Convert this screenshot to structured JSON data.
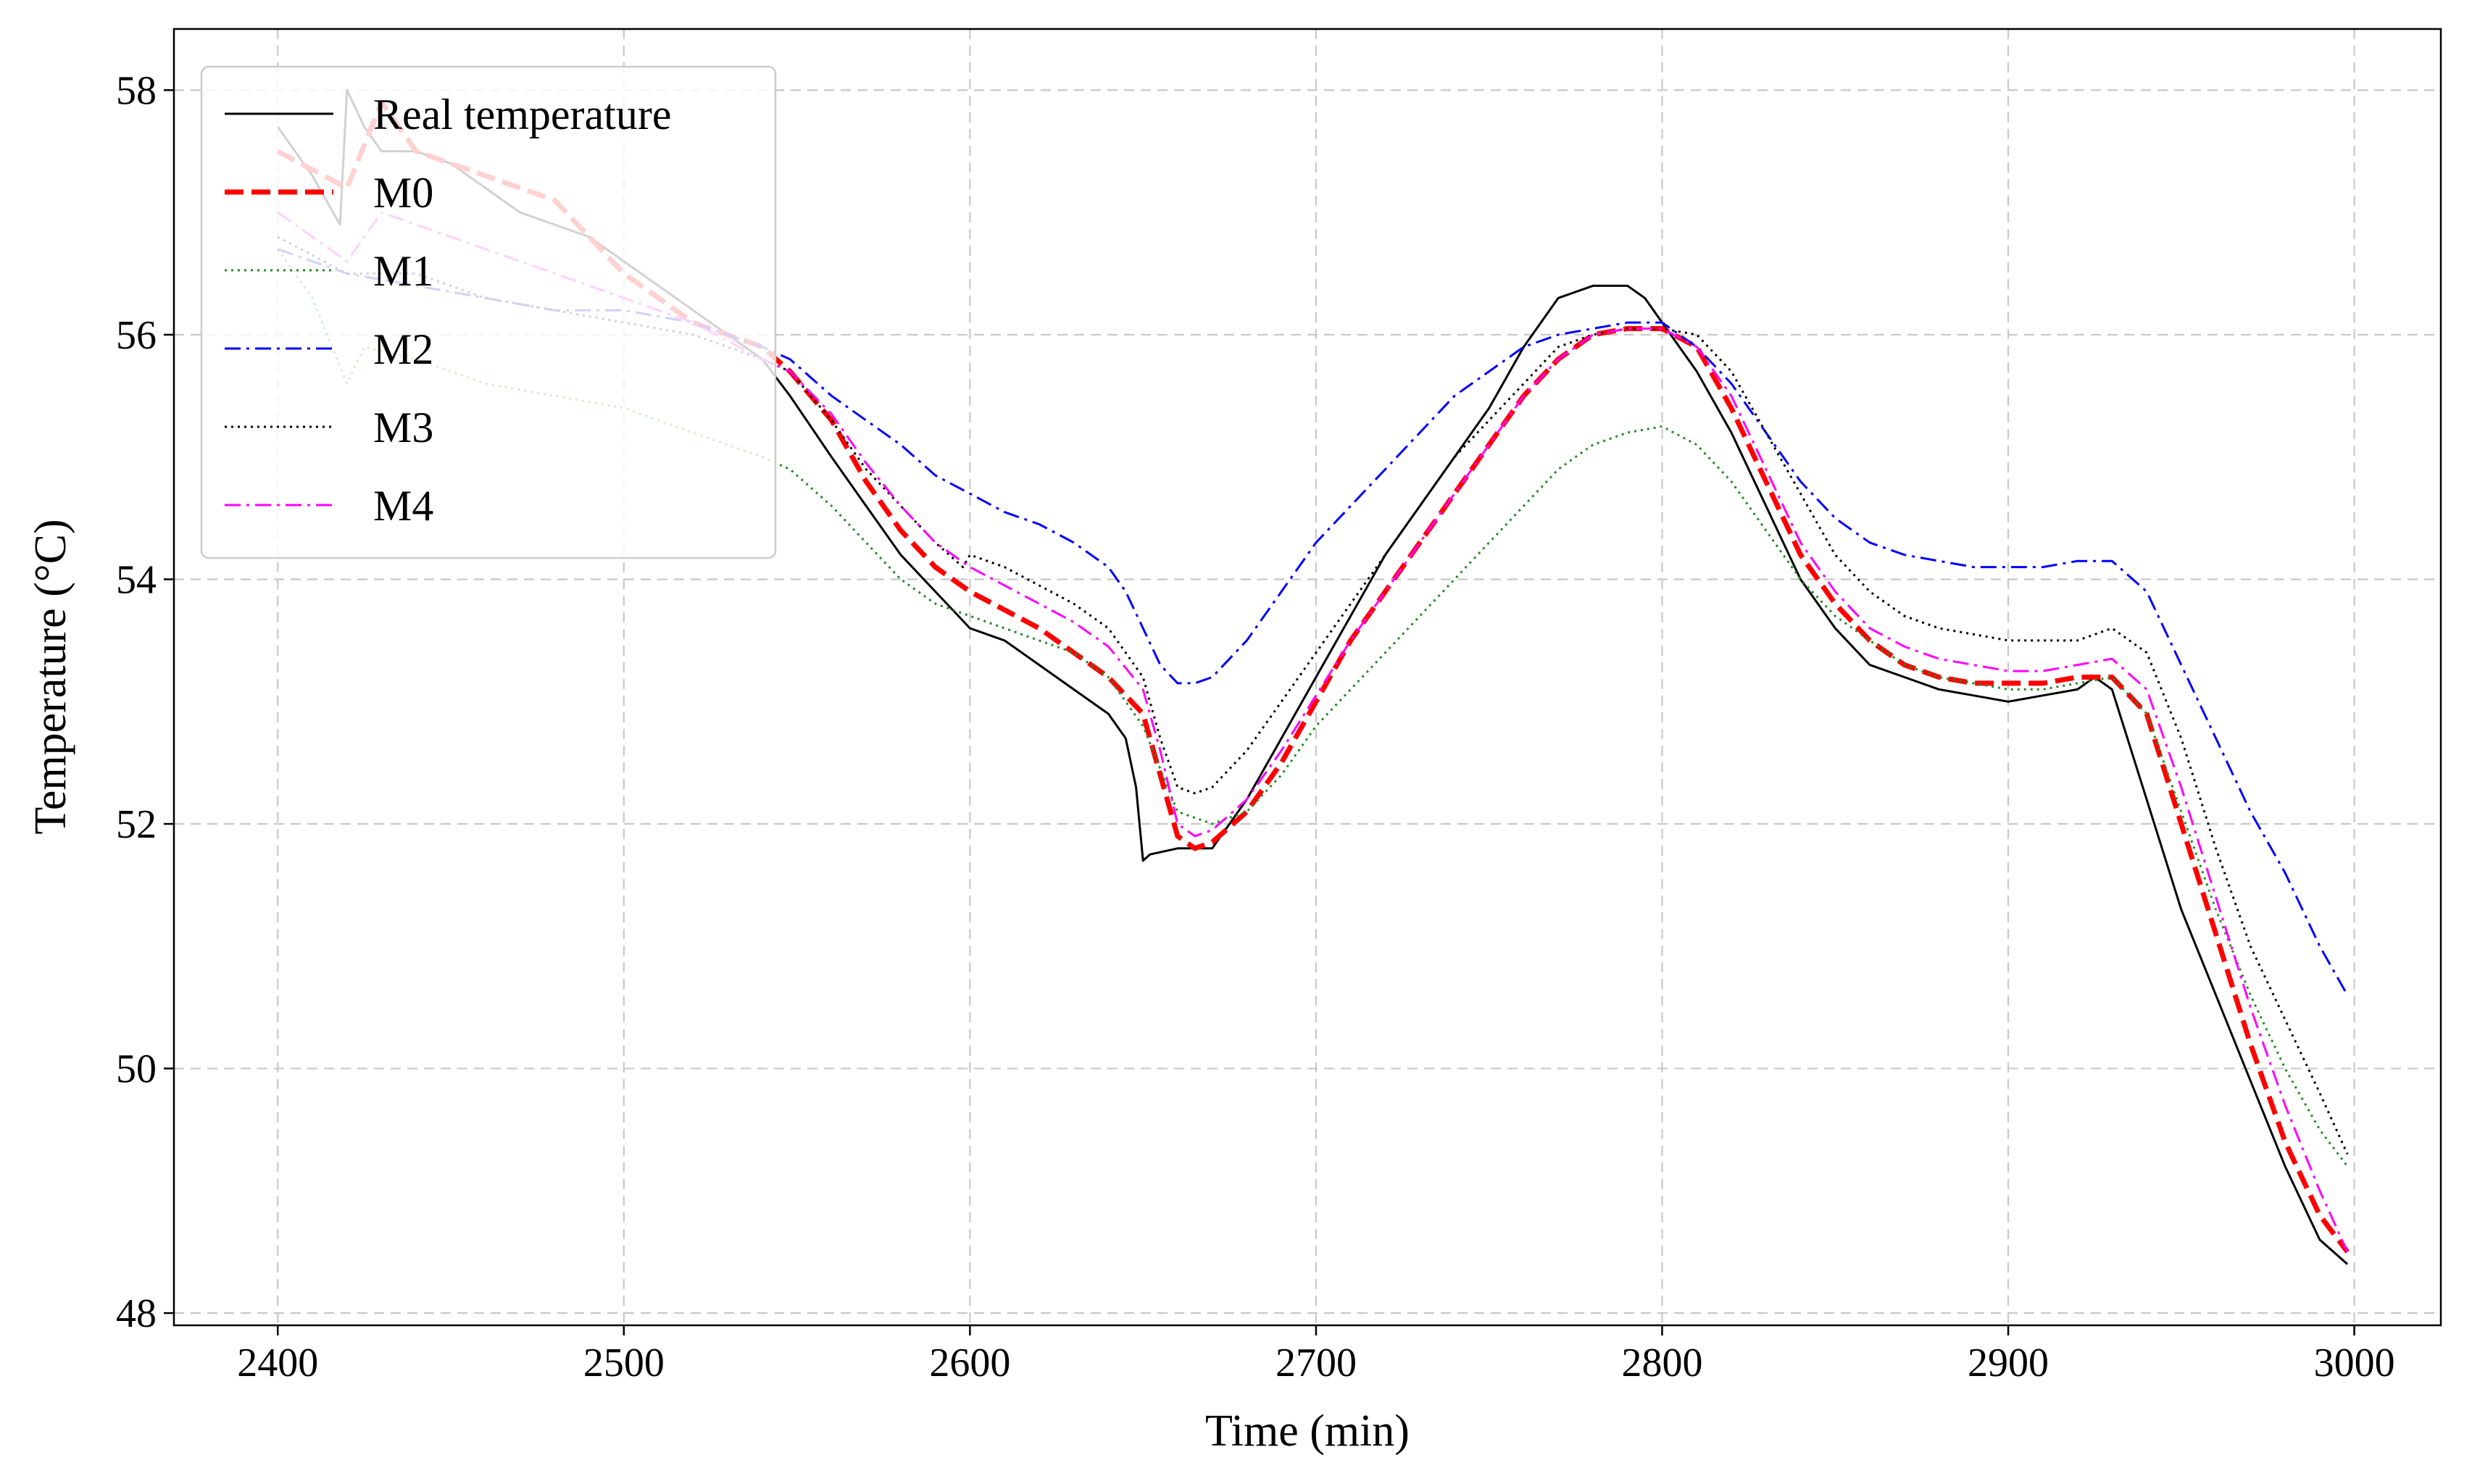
{
  "chart_data": {
    "type": "line",
    "title": "",
    "xlabel": "Time (min)",
    "ylabel": "Temperature (°C)",
    "xlim": [
      2370,
      3025
    ],
    "ylim": [
      47.9,
      58.5
    ],
    "xticks": [
      2400,
      2500,
      2600,
      2700,
      2800,
      2900,
      3000
    ],
    "yticks": [
      48,
      50,
      52,
      54,
      56,
      58
    ],
    "grid": true,
    "legend_position": "top-left",
    "series": [
      {
        "name": "Real temperature",
        "color": "#000000",
        "style": "solid",
        "x": [
          2400,
          2410,
          2418,
          2420,
          2425,
          2430,
          2440,
          2450,
          2460,
          2470,
          2480,
          2490,
          2500,
          2510,
          2520,
          2530,
          2540,
          2548,
          2560,
          2570,
          2580,
          2590,
          2600,
          2610,
          2620,
          2630,
          2640,
          2645,
          2648,
          2650,
          2652,
          2660,
          2670,
          2680,
          2690,
          2700,
          2710,
          2720,
          2730,
          2740,
          2750,
          2760,
          2770,
          2780,
          2790,
          2795,
          2800,
          2810,
          2820,
          2830,
          2840,
          2850,
          2860,
          2870,
          2880,
          2890,
          2900,
          2910,
          2920,
          2925,
          2930,
          2940,
          2950,
          2960,
          2970,
          2980,
          2990,
          2998
        ],
        "values": [
          57.7,
          57.3,
          56.9,
          58.0,
          57.7,
          57.5,
          57.5,
          57.4,
          57.2,
          57.0,
          56.9,
          56.8,
          56.6,
          56.4,
          56.2,
          56.0,
          55.8,
          55.5,
          55.0,
          54.6,
          54.2,
          53.9,
          53.6,
          53.5,
          53.3,
          53.1,
          52.9,
          52.7,
          52.3,
          51.7,
          51.75,
          51.8,
          51.8,
          52.2,
          52.7,
          53.2,
          53.7,
          54.2,
          54.6,
          55.0,
          55.4,
          55.9,
          56.3,
          56.4,
          56.4,
          56.3,
          56.1,
          55.7,
          55.2,
          54.6,
          54.0,
          53.6,
          53.3,
          53.2,
          53.1,
          53.05,
          53.0,
          53.05,
          53.1,
          53.2,
          53.1,
          52.2,
          51.3,
          50.6,
          49.9,
          49.2,
          48.6,
          48.4
        ]
      },
      {
        "name": "M0",
        "color": "#ff0000",
        "style": "dashed",
        "x": [
          2400,
          2420,
          2430,
          2440,
          2460,
          2480,
          2500,
          2520,
          2540,
          2548,
          2560,
          2570,
          2580,
          2590,
          2600,
          2610,
          2620,
          2630,
          2640,
          2650,
          2655,
          2660,
          2665,
          2670,
          2680,
          2690,
          2700,
          2710,
          2720,
          2730,
          2740,
          2750,
          2760,
          2770,
          2780,
          2790,
          2800,
          2810,
          2820,
          2830,
          2840,
          2850,
          2860,
          2870,
          2880,
          2890,
          2900,
          2910,
          2920,
          2930,
          2940,
          2950,
          2960,
          2970,
          2980,
          2990,
          2998
        ],
        "values": [
          57.5,
          57.2,
          57.9,
          57.5,
          57.3,
          57.1,
          56.5,
          56.1,
          55.9,
          55.7,
          55.3,
          54.8,
          54.4,
          54.1,
          53.9,
          53.75,
          53.6,
          53.4,
          53.2,
          52.9,
          52.4,
          51.9,
          51.8,
          51.85,
          52.1,
          52.5,
          53.0,
          53.5,
          53.9,
          54.3,
          54.7,
          55.1,
          55.5,
          55.8,
          56.0,
          56.05,
          56.05,
          55.9,
          55.4,
          54.8,
          54.2,
          53.8,
          53.5,
          53.3,
          53.2,
          53.15,
          53.15,
          53.15,
          53.2,
          53.2,
          52.9,
          52.0,
          51.1,
          50.2,
          49.4,
          48.8,
          48.5
        ]
      },
      {
        "name": "M1",
        "color": "#228b22",
        "style": "dotted",
        "x": [
          2400,
          2410,
          2420,
          2425,
          2440,
          2460,
          2480,
          2500,
          2520,
          2540,
          2548,
          2560,
          2570,
          2580,
          2590,
          2600,
          2610,
          2620,
          2630,
          2640,
          2650,
          2660,
          2665,
          2670,
          2680,
          2690,
          2700,
          2710,
          2720,
          2730,
          2740,
          2750,
          2760,
          2770,
          2780,
          2790,
          2800,
          2810,
          2820,
          2830,
          2840,
          2850,
          2860,
          2870,
          2880,
          2890,
          2900,
          2910,
          2920,
          2930,
          2940,
          2950,
          2960,
          2970,
          2980,
          2990,
          2998
        ],
        "values": [
          56.7,
          56.3,
          55.6,
          55.9,
          55.8,
          55.6,
          55.5,
          55.4,
          55.2,
          55.0,
          54.9,
          54.6,
          54.3,
          54.0,
          53.8,
          53.7,
          53.6,
          53.5,
          53.4,
          53.2,
          52.8,
          52.1,
          52.05,
          52.0,
          52.1,
          52.4,
          52.8,
          53.1,
          53.4,
          53.7,
          54.0,
          54.3,
          54.6,
          54.9,
          55.1,
          55.2,
          55.25,
          55.1,
          54.8,
          54.4,
          54.0,
          53.7,
          53.5,
          53.3,
          53.2,
          53.15,
          53.1,
          53.1,
          53.15,
          53.2,
          52.9,
          52.1,
          51.3,
          50.6,
          50.0,
          49.5,
          49.2
        ]
      },
      {
        "name": "M2",
        "color": "#0000ff",
        "style": "dashdot",
        "x": [
          2400,
          2420,
          2440,
          2460,
          2480,
          2500,
          2520,
          2540,
          2548,
          2560,
          2570,
          2580,
          2590,
          2600,
          2610,
          2620,
          2630,
          2640,
          2645,
          2650,
          2655,
          2660,
          2665,
          2670,
          2680,
          2690,
          2700,
          2710,
          2720,
          2730,
          2740,
          2750,
          2760,
          2770,
          2780,
          2790,
          2800,
          2810,
          2820,
          2830,
          2840,
          2850,
          2860,
          2870,
          2880,
          2890,
          2900,
          2910,
          2920,
          2930,
          2940,
          2950,
          2960,
          2970,
          2980,
          2990,
          2998
        ],
        "values": [
          56.7,
          56.5,
          56.4,
          56.3,
          56.2,
          56.2,
          56.1,
          55.9,
          55.8,
          55.5,
          55.3,
          55.1,
          54.85,
          54.7,
          54.55,
          54.45,
          54.3,
          54.1,
          53.9,
          53.6,
          53.3,
          53.15,
          53.15,
          53.2,
          53.5,
          53.9,
          54.3,
          54.6,
          54.9,
          55.2,
          55.5,
          55.7,
          55.9,
          56.0,
          56.05,
          56.1,
          56.1,
          55.9,
          55.6,
          55.2,
          54.8,
          54.5,
          54.3,
          54.2,
          54.15,
          54.1,
          54.1,
          54.1,
          54.15,
          54.15,
          53.9,
          53.3,
          52.7,
          52.1,
          51.6,
          51.0,
          50.6
        ]
      },
      {
        "name": "M3",
        "color": "#000000",
        "style": "dotted",
        "x": [
          2400,
          2420,
          2440,
          2460,
          2480,
          2500,
          2520,
          2540,
          2548,
          2560,
          2570,
          2580,
          2590,
          2598,
          2600,
          2610,
          2620,
          2630,
          2640,
          2650,
          2655,
          2660,
          2665,
          2670,
          2680,
          2690,
          2700,
          2710,
          2720,
          2730,
          2740,
          2750,
          2760,
          2770,
          2780,
          2790,
          2800,
          2810,
          2820,
          2830,
          2840,
          2850,
          2860,
          2870,
          2880,
          2890,
          2900,
          2910,
          2920,
          2930,
          2940,
          2950,
          2960,
          2970,
          2980,
          2990,
          2998
        ],
        "values": [
          56.8,
          56.5,
          56.5,
          56.3,
          56.2,
          56.1,
          56.0,
          55.8,
          55.7,
          55.3,
          54.9,
          54.6,
          54.3,
          54.1,
          54.2,
          54.1,
          53.95,
          53.8,
          53.6,
          53.2,
          52.7,
          52.3,
          52.25,
          52.3,
          52.6,
          53.0,
          53.4,
          53.8,
          54.2,
          54.6,
          55.0,
          55.3,
          55.6,
          55.9,
          56.0,
          56.05,
          56.05,
          56.0,
          55.7,
          55.2,
          54.7,
          54.2,
          53.9,
          53.7,
          53.6,
          53.55,
          53.5,
          53.5,
          53.5,
          53.6,
          53.4,
          52.7,
          51.8,
          51.0,
          50.4,
          49.8,
          49.3
        ]
      },
      {
        "name": "M4",
        "color": "#ff00ff",
        "style": "dashdot",
        "x": [
          2400,
          2420,
          2430,
          2440,
          2460,
          2480,
          2500,
          2520,
          2540,
          2548,
          2560,
          2570,
          2580,
          2590,
          2600,
          2610,
          2620,
          2630,
          2640,
          2650,
          2655,
          2660,
          2665,
          2670,
          2680,
          2690,
          2700,
          2710,
          2720,
          2730,
          2740,
          2750,
          2760,
          2770,
          2780,
          2790,
          2800,
          2810,
          2820,
          2830,
          2840,
          2850,
          2860,
          2870,
          2880,
          2890,
          2900,
          2910,
          2920,
          2930,
          2940,
          2950,
          2960,
          2970,
          2980,
          2990,
          2998
        ],
        "values": [
          57.0,
          56.6,
          57.0,
          56.9,
          56.7,
          56.5,
          56.3,
          56.1,
          55.8,
          55.7,
          55.35,
          54.95,
          54.6,
          54.3,
          54.1,
          53.95,
          53.8,
          53.65,
          53.45,
          53.1,
          52.6,
          52.0,
          51.9,
          51.95,
          52.2,
          52.6,
          53.05,
          53.5,
          53.9,
          54.3,
          54.7,
          55.1,
          55.5,
          55.8,
          56.0,
          56.05,
          56.05,
          55.9,
          55.5,
          54.9,
          54.3,
          53.9,
          53.6,
          53.45,
          53.35,
          53.3,
          53.25,
          53.25,
          53.3,
          53.35,
          53.1,
          52.3,
          51.4,
          50.5,
          49.7,
          49.0,
          48.5
        ]
      }
    ]
  }
}
